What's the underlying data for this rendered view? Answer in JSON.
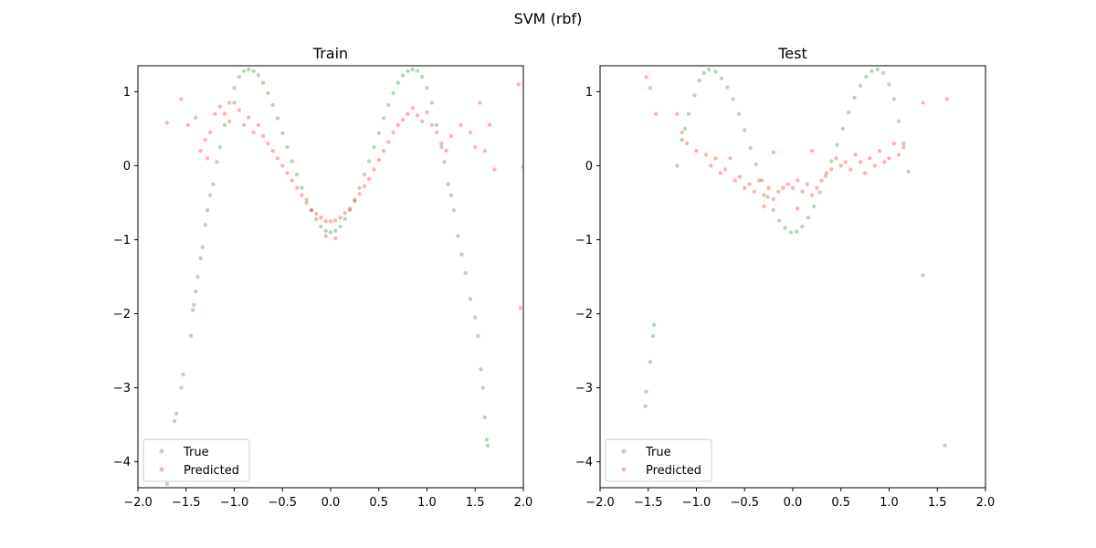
{
  "figure": {
    "suptitle": "SVM (rbf)"
  },
  "chart_data": [
    {
      "type": "scatter",
      "title": "Train",
      "xlabel": "",
      "ylabel": "",
      "xlim": [
        -2.0,
        2.0
      ],
      "ylim": [
        -4.35,
        1.35
      ],
      "xticks": [
        -2.0,
        -1.5,
        -1.0,
        -0.5,
        0.0,
        0.5,
        1.0,
        1.5,
        2.0
      ],
      "xtick_labels": [
        "−2.0",
        "−1.5",
        "−1.0",
        "−0.5",
        "0.0",
        "0.5",
        "1.0",
        "1.5",
        "2.0"
      ],
      "yticks": [
        -4,
        -3,
        -2,
        -1,
        0,
        1
      ],
      "ytick_labels": [
        "−4",
        "−3",
        "−2",
        "−1",
        "0",
        "1"
      ],
      "grid": false,
      "legend": {
        "position": "lower-left",
        "entries": [
          "True",
          "Predicted"
        ]
      },
      "series": [
        {
          "name": "True",
          "color": "#008000",
          "curve": "y = x^4 - 1.5x^2 ... (observed sinusoid-like)",
          "points": [
            [
              -1.7,
              -4.3
            ],
            [
              -1.62,
              -3.45
            ],
            [
              -1.6,
              -3.35
            ],
            [
              -1.55,
              -3.0
            ],
            [
              -1.53,
              -2.82
            ],
            [
              -1.45,
              -2.3
            ],
            [
              -1.43,
              -1.95
            ],
            [
              -1.42,
              -1.88
            ],
            [
              -1.4,
              -1.7
            ],
            [
              -1.38,
              -1.5
            ],
            [
              -1.35,
              -1.25
            ],
            [
              -1.33,
              -1.1
            ],
            [
              -1.3,
              -0.8
            ],
            [
              -1.28,
              -0.6
            ],
            [
              -1.25,
              -0.4
            ],
            [
              -1.22,
              -0.25
            ],
            [
              -1.18,
              0.05
            ],
            [
              -1.15,
              0.25
            ],
            [
              -1.1,
              0.55
            ],
            [
              -1.05,
              0.85
            ],
            [
              -1.0,
              1.05
            ],
            [
              -0.95,
              1.2
            ],
            [
              -0.9,
              1.28
            ],
            [
              -0.85,
              1.3
            ],
            [
              -0.8,
              1.28
            ],
            [
              -0.75,
              1.22
            ],
            [
              -0.7,
              1.12
            ],
            [
              -0.65,
              0.98
            ],
            [
              -0.6,
              0.82
            ],
            [
              -0.55,
              0.64
            ],
            [
              -0.5,
              0.44
            ],
            [
              -0.45,
              0.25
            ],
            [
              -0.4,
              0.06
            ],
            [
              -0.35,
              -0.12
            ],
            [
              -0.3,
              -0.3
            ],
            [
              -0.25,
              -0.46
            ],
            [
              -0.2,
              -0.6
            ],
            [
              -0.15,
              -0.72
            ],
            [
              -0.1,
              -0.82
            ],
            [
              -0.05,
              -0.88
            ],
            [
              0.0,
              -0.9
            ],
            [
              0.05,
              -0.88
            ],
            [
              0.1,
              -0.82
            ],
            [
              0.15,
              -0.72
            ],
            [
              0.2,
              -0.6
            ],
            [
              0.25,
              -0.46
            ],
            [
              0.3,
              -0.3
            ],
            [
              0.35,
              -0.12
            ],
            [
              0.4,
              0.06
            ],
            [
              0.45,
              0.25
            ],
            [
              0.5,
              0.44
            ],
            [
              0.55,
              0.64
            ],
            [
              0.6,
              0.82
            ],
            [
              0.65,
              0.98
            ],
            [
              0.7,
              1.12
            ],
            [
              0.75,
              1.22
            ],
            [
              0.8,
              1.28
            ],
            [
              0.85,
              1.3
            ],
            [
              0.9,
              1.28
            ],
            [
              0.95,
              1.2
            ],
            [
              1.0,
              1.05
            ],
            [
              1.05,
              0.85
            ],
            [
              1.1,
              0.55
            ],
            [
              1.15,
              0.25
            ],
            [
              1.18,
              0.05
            ],
            [
              1.22,
              -0.25
            ],
            [
              1.25,
              -0.4
            ],
            [
              1.28,
              -0.6
            ],
            [
              1.32,
              -0.95
            ],
            [
              1.36,
              -1.2
            ],
            [
              1.4,
              -1.45
            ],
            [
              1.45,
              -1.8
            ],
            [
              1.5,
              -2.05
            ],
            [
              1.53,
              -2.3
            ],
            [
              1.56,
              -2.75
            ],
            [
              1.58,
              -3.0
            ],
            [
              1.6,
              -3.4
            ],
            [
              1.62,
              -3.7
            ],
            [
              1.63,
              -3.78
            ],
            [
              2.0,
              -0.02
            ]
          ]
        },
        {
          "name": "Predicted",
          "color": "#ff0000",
          "points": [
            [
              -1.7,
              0.58
            ],
            [
              -1.55,
              0.9
            ],
            [
              -1.48,
              0.55
            ],
            [
              -1.4,
              0.65
            ],
            [
              -1.35,
              0.2
            ],
            [
              -1.3,
              0.35
            ],
            [
              -1.28,
              0.1
            ],
            [
              -1.25,
              0.45
            ],
            [
              -1.2,
              0.7
            ],
            [
              -1.15,
              0.8
            ],
            [
              -1.1,
              0.7
            ],
            [
              -1.05,
              0.6
            ],
            [
              -1.0,
              0.85
            ],
            [
              -0.95,
              0.75
            ],
            [
              -0.9,
              0.55
            ],
            [
              -0.85,
              0.65
            ],
            [
              -0.8,
              0.45
            ],
            [
              -0.75,
              0.55
            ],
            [
              -0.7,
              0.4
            ],
            [
              -0.65,
              0.3
            ],
            [
              -0.6,
              0.2
            ],
            [
              -0.55,
              0.1
            ],
            [
              -0.5,
              0.0
            ],
            [
              -0.45,
              -0.1
            ],
            [
              -0.4,
              -0.2
            ],
            [
              -0.35,
              -0.3
            ],
            [
              -0.3,
              -0.4
            ],
            [
              -0.25,
              -0.5
            ],
            [
              -0.2,
              -0.6
            ],
            [
              -0.15,
              -0.65
            ],
            [
              -0.1,
              -0.7
            ],
            [
              -0.05,
              -0.75
            ],
            [
              0.0,
              -0.75
            ],
            [
              0.05,
              -0.74
            ],
            [
              0.1,
              -0.7
            ],
            [
              0.15,
              -0.64
            ],
            [
              0.2,
              -0.58
            ],
            [
              0.25,
              -0.48
            ],
            [
              0.3,
              -0.38
            ],
            [
              0.35,
              -0.28
            ],
            [
              0.4,
              -0.18
            ],
            [
              0.45,
              -0.05
            ],
            [
              0.5,
              0.08
            ],
            [
              0.55,
              0.2
            ],
            [
              0.6,
              0.32
            ],
            [
              0.65,
              0.45
            ],
            [
              0.7,
              0.55
            ],
            [
              0.75,
              0.62
            ],
            [
              0.8,
              0.7
            ],
            [
              0.85,
              0.78
            ],
            [
              0.9,
              0.68
            ],
            [
              0.95,
              0.6
            ],
            [
              1.0,
              0.72
            ],
            [
              1.05,
              0.55
            ],
            [
              1.1,
              0.45
            ],
            [
              1.15,
              0.3
            ],
            [
              1.2,
              0.2
            ],
            [
              1.25,
              0.4
            ],
            [
              1.35,
              0.55
            ],
            [
              1.45,
              0.45
            ],
            [
              1.5,
              0.25
            ],
            [
              1.55,
              0.85
            ],
            [
              1.6,
              0.2
            ],
            [
              1.65,
              0.55
            ],
            [
              1.7,
              -0.05
            ],
            [
              1.95,
              1.1
            ],
            [
              1.97,
              -1.92
            ],
            [
              -0.05,
              -0.95
            ],
            [
              0.05,
              -0.98
            ]
          ]
        }
      ]
    },
    {
      "type": "scatter",
      "title": "Test",
      "xlabel": "",
      "ylabel": "",
      "xlim": [
        -2.0,
        2.0
      ],
      "ylim": [
        -4.35,
        1.35
      ],
      "xticks": [
        -2.0,
        -1.5,
        -1.0,
        -0.5,
        0.0,
        0.5,
        1.0,
        1.5,
        2.0
      ],
      "xtick_labels": [
        "−2.0",
        "−1.5",
        "−1.0",
        "−0.5",
        "0.0",
        "0.5",
        "1.0",
        "1.5",
        "2.0"
      ],
      "yticks": [
        -4,
        -3,
        -2,
        -1,
        0,
        1
      ],
      "ytick_labels": [
        "−4",
        "−3",
        "−2",
        "−1",
        "0",
        "1"
      ],
      "grid": false,
      "legend": {
        "position": "lower-left",
        "entries": [
          "True",
          "Predicted"
        ]
      },
      "series": [
        {
          "name": "True",
          "color": "#008000",
          "points": [
            [
              -1.53,
              -3.25
            ],
            [
              -1.52,
              -3.05
            ],
            [
              -1.48,
              -2.65
            ],
            [
              -1.45,
              -2.3
            ],
            [
              -1.44,
              -2.15
            ],
            [
              -1.2,
              0.0
            ],
            [
              -1.15,
              0.35
            ],
            [
              -1.12,
              0.5
            ],
            [
              -1.08,
              0.7
            ],
            [
              -1.02,
              0.95
            ],
            [
              -0.97,
              1.15
            ],
            [
              -0.92,
              1.25
            ],
            [
              -0.87,
              1.3
            ],
            [
              -0.8,
              1.27
            ],
            [
              -0.74,
              1.18
            ],
            [
              -0.68,
              1.06
            ],
            [
              -0.62,
              0.9
            ],
            [
              -0.56,
              0.7
            ],
            [
              -0.5,
              0.48
            ],
            [
              -0.44,
              0.24
            ],
            [
              -0.38,
              0.02
            ],
            [
              -0.32,
              -0.2
            ],
            [
              -0.26,
              -0.42
            ],
            [
              -0.2,
              -0.6
            ],
            [
              -0.14,
              -0.74
            ],
            [
              -0.08,
              -0.84
            ],
            [
              -0.02,
              -0.9
            ],
            [
              0.04,
              -0.89
            ],
            [
              0.1,
              -0.82
            ],
            [
              0.16,
              -0.7
            ],
            [
              0.22,
              -0.55
            ],
            [
              0.28,
              -0.36
            ],
            [
              0.34,
              -0.14
            ],
            [
              0.4,
              0.06
            ],
            [
              0.46,
              0.28
            ],
            [
              0.52,
              0.5
            ],
            [
              0.58,
              0.72
            ],
            [
              0.64,
              0.92
            ],
            [
              0.7,
              1.08
            ],
            [
              0.76,
              1.2
            ],
            [
              0.82,
              1.28
            ],
            [
              0.88,
              1.3
            ],
            [
              0.94,
              1.25
            ],
            [
              1.0,
              1.1
            ],
            [
              1.05,
              0.9
            ],
            [
              1.1,
              0.6
            ],
            [
              1.15,
              0.3
            ],
            [
              1.2,
              -0.08
            ],
            [
              1.35,
              -1.48
            ],
            [
              1.58,
              -3.78
            ]
          ]
        },
        {
          "name": "Predicted",
          "color": "#ff0000",
          "points": [
            [
              -1.52,
              1.2
            ],
            [
              -1.48,
              1.05
            ],
            [
              -1.42,
              0.7
            ],
            [
              -1.2,
              0.7
            ],
            [
              -1.15,
              0.45
            ],
            [
              -1.1,
              0.3
            ],
            [
              -1.0,
              0.2
            ],
            [
              -0.9,
              0.15
            ],
            [
              -0.85,
              0.0
            ],
            [
              -0.8,
              0.1
            ],
            [
              -0.75,
              -0.1
            ],
            [
              -0.7,
              -0.05
            ],
            [
              -0.65,
              0.1
            ],
            [
              -0.6,
              -0.2
            ],
            [
              -0.55,
              -0.15
            ],
            [
              -0.5,
              -0.3
            ],
            [
              -0.45,
              -0.25
            ],
            [
              -0.4,
              -0.35
            ],
            [
              -0.35,
              -0.2
            ],
            [
              -0.3,
              -0.4
            ],
            [
              -0.25,
              -0.3
            ],
            [
              -0.2,
              -0.45
            ],
            [
              -0.15,
              -0.35
            ],
            [
              -0.1,
              -0.3
            ],
            [
              -0.05,
              -0.25
            ],
            [
              0.0,
              -0.3
            ],
            [
              0.05,
              -0.2
            ],
            [
              0.1,
              -0.35
            ],
            [
              0.15,
              -0.25
            ],
            [
              0.2,
              -0.4
            ],
            [
              0.25,
              -0.3
            ],
            [
              0.3,
              -0.2
            ],
            [
              0.35,
              -0.1
            ],
            [
              0.4,
              -0.05
            ],
            [
              0.45,
              0.1
            ],
            [
              0.5,
              0.0
            ],
            [
              0.55,
              0.05
            ],
            [
              0.6,
              -0.05
            ],
            [
              0.65,
              0.15
            ],
            [
              0.7,
              0.05
            ],
            [
              0.75,
              -0.1
            ],
            [
              0.8,
              0.1
            ],
            [
              0.85,
              0.0
            ],
            [
              0.9,
              0.2
            ],
            [
              0.95,
              0.05
            ],
            [
              1.0,
              0.1
            ],
            [
              1.05,
              0.3
            ],
            [
              1.1,
              0.15
            ],
            [
              1.15,
              0.25
            ],
            [
              1.35,
              0.85
            ],
            [
              1.6,
              0.9
            ],
            [
              -0.3,
              -0.55
            ],
            [
              0.05,
              -0.58
            ],
            [
              -0.2,
              0.18
            ],
            [
              0.2,
              0.2
            ]
          ]
        }
      ]
    }
  ]
}
